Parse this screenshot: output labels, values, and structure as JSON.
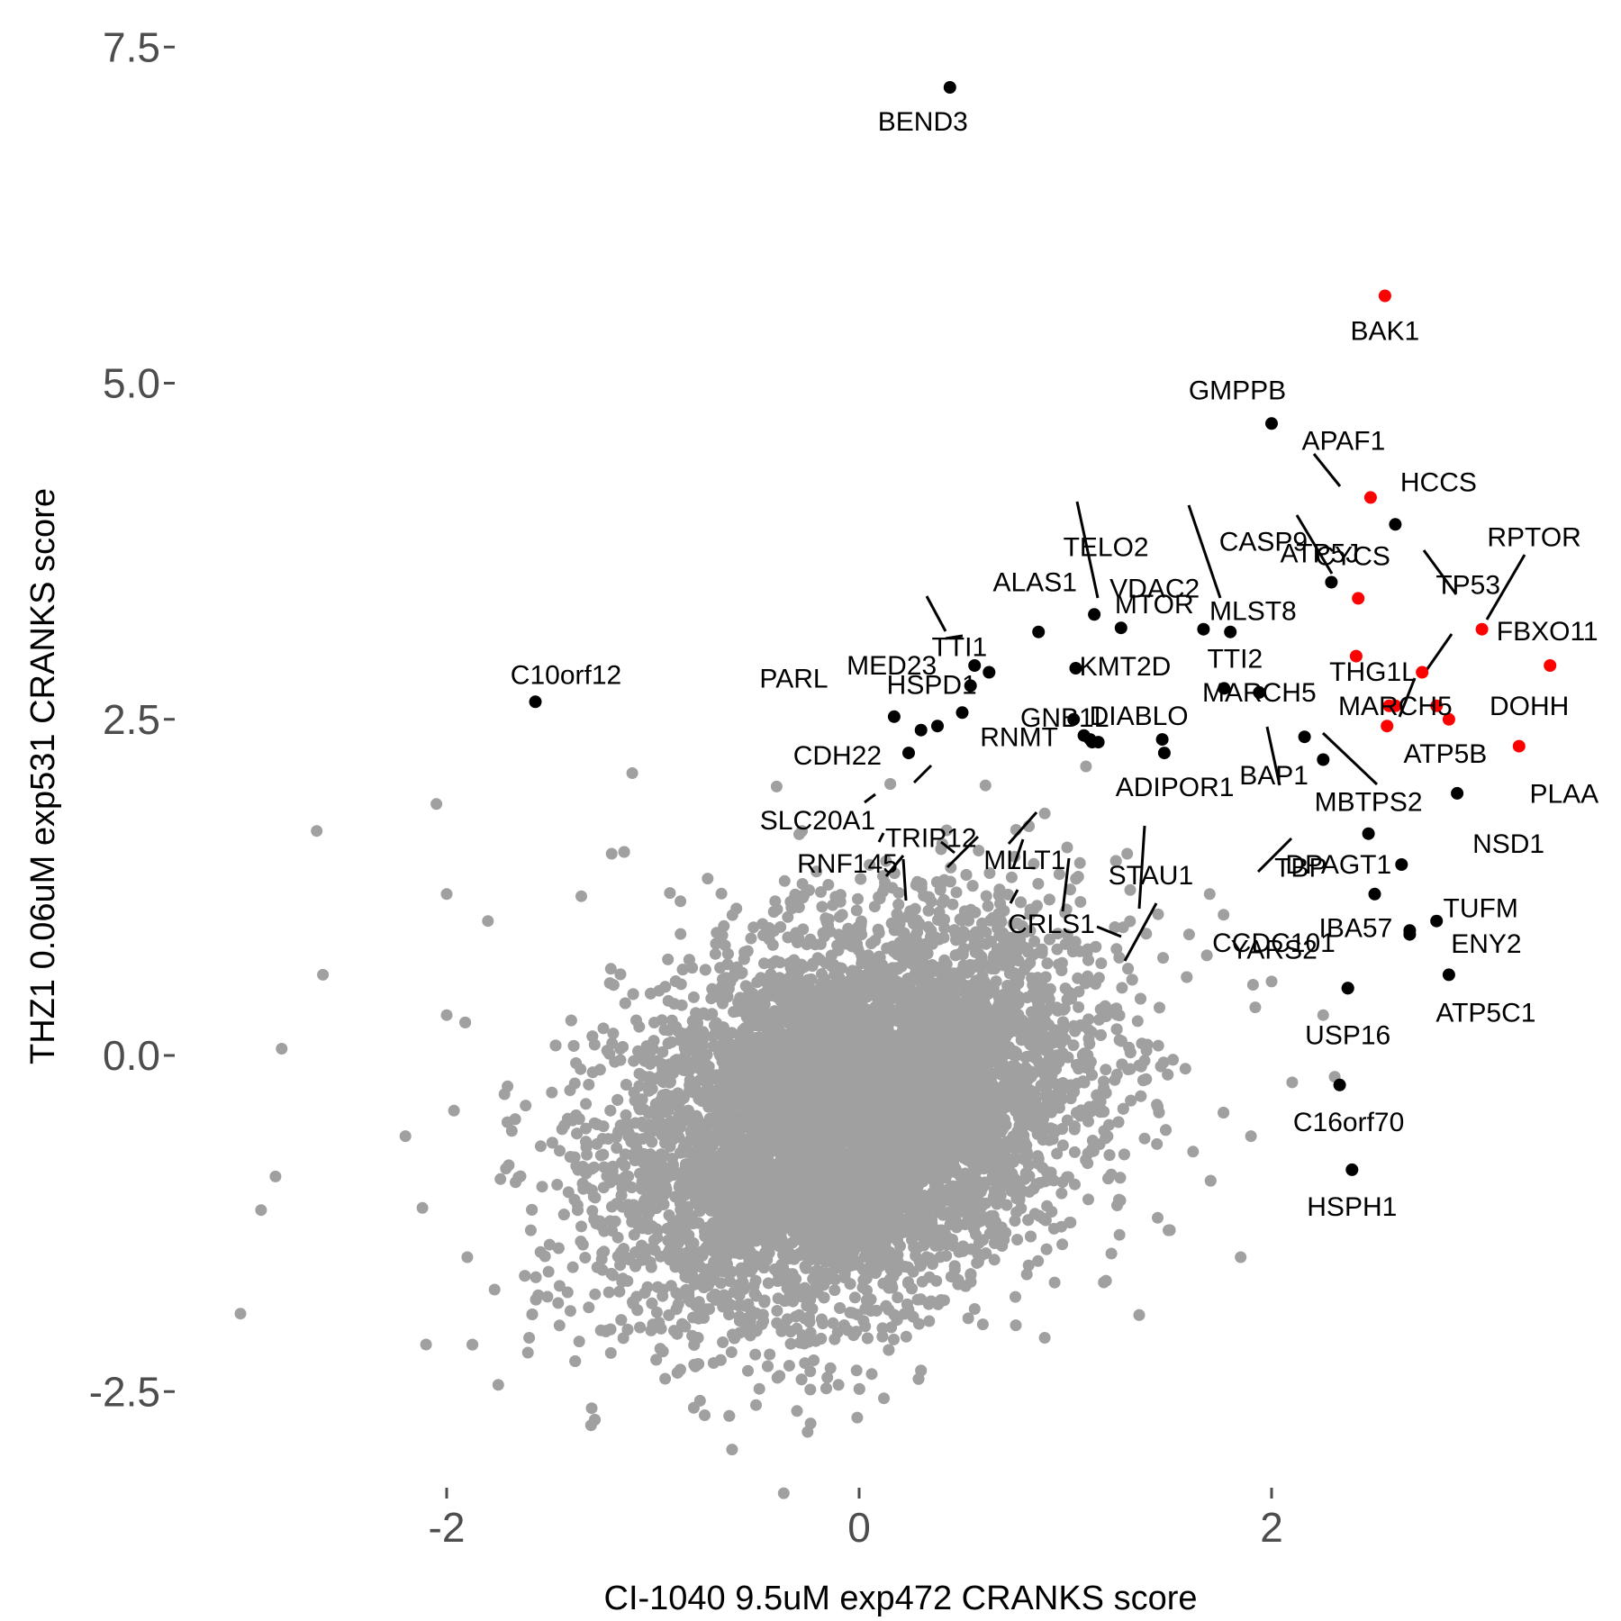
{
  "chart_data": {
    "type": "scatter",
    "xlabel": "CI-1040 9.5uM exp472 CRANKS score",
    "ylabel": "THZ1 0.06uM exp531 CRANKS score",
    "x_ticks": [
      -2,
      0,
      2
    ],
    "y_ticks": [
      -2.5,
      0.0,
      2.5,
      5.0,
      7.5
    ],
    "x_tick_labels": [
      "-2",
      "0",
      "2"
    ],
    "y_tick_labels": [
      "-2.5",
      "0.0",
      "2.5",
      "5.0",
      "7.5"
    ],
    "xlim": [
      -3.05,
      3.6
    ],
    "ylim": [
      -3.27,
      7.75
    ],
    "grid": false,
    "legend": "none",
    "colors": {
      "background": "#ffffff",
      "points": "#a0a0a0",
      "labeled": "#000000",
      "highlight": "#ff0000",
      "ticks": "#4d4d4d"
    },
    "background_distribution": {
      "description_only": false,
      "center": [
        -0.05,
        -0.45
      ],
      "sd": [
        0.55,
        0.7
      ],
      "correlation": 0.3,
      "sparse_outliers": [
        [
          -2.05,
          1.87
        ],
        [
          -2.63,
          1.67
        ],
        [
          -2.0,
          1.2
        ],
        [
          -2.6,
          0.6
        ],
        [
          -2.8,
          0.05
        ],
        [
          -2.83,
          -0.9
        ],
        [
          -2.9,
          -1.15
        ],
        [
          -3.0,
          -1.92
        ],
        [
          -2.1,
          -2.15
        ],
        [
          -1.75,
          -2.45
        ],
        [
          -1.3,
          -2.75
        ],
        [
          -0.5,
          -2.6
        ],
        [
          -0.25,
          -2.8
        ],
        [
          0.12,
          -2.55
        ],
        [
          1.85,
          -1.5
        ],
        [
          1.1,
          2.15
        ],
        [
          -1.1,
          2.1
        ],
        [
          1.45,
          1.05
        ],
        [
          1.6,
          0.9
        ],
        [
          2.0,
          0.55
        ],
        [
          2.25,
          0.3
        ],
        [
          1.9,
          -0.6
        ],
        [
          -1.2,
          1.5
        ],
        [
          0.6,
          -2.0
        ],
        [
          -0.8,
          -2.3
        ],
        [
          -1.6,
          -2.1
        ],
        [
          -1.9,
          -1.5
        ],
        [
          -2.2,
          -0.6
        ],
        [
          -2.0,
          0.3
        ],
        [
          -1.8,
          1.0
        ],
        [
          1.3,
          1.5
        ],
        [
          0.9,
          1.8
        ],
        [
          -0.4,
          2.0
        ],
        [
          1.7,
          1.2
        ],
        [
          2.1,
          -0.2
        ],
        [
          1.5,
          -1.3
        ],
        [
          0.9,
          -2.1
        ],
        [
          -0.1,
          -2.45
        ],
        [
          -1.0,
          -2.0
        ],
        [
          -1.4,
          -1.9
        ]
      ]
    },
    "highlight_points": [
      {
        "label": "BAK1",
        "x": 2.55,
        "y": 5.65
      },
      {
        "label": "APAF1",
        "x": 2.48,
        "y": 4.15
      },
      {
        "label": "CYCS",
        "x": 2.42,
        "y": 3.4
      },
      {
        "label": "CASP9",
        "x": 2.41,
        "y": 2.97
      },
      {
        "label": "RPTOR",
        "x": 3.02,
        "y": 3.17
      },
      {
        "label": "TP53",
        "x": 2.73,
        "y": 2.85
      },
      {
        "label": "FBXO11",
        "x": 3.35,
        "y": 2.9
      },
      {
        "label": "THG1L",
        "x": 2.57,
        "y": 2.6
      },
      {
        "label": "DOHH",
        "x": 2.8,
        "y": 2.6
      },
      {
        "label": "ATP5B",
        "x": 2.86,
        "y": 2.5
      },
      {
        "label": "MARCH5",
        "x": 2.6,
        "y": 2.6
      },
      {
        "label": "PLAA",
        "x": 3.2,
        "y": 2.3
      },
      {
        "label": "",
        "x": 2.56,
        "y": 2.45
      }
    ],
    "labeled_points": [
      {
        "label": "BEND3",
        "x": 0.44,
        "y": 7.2
      },
      {
        "label": "C10orf12",
        "x": -1.57,
        "y": 2.63
      },
      {
        "label": "GMPPB",
        "x": 2.0,
        "y": 4.7
      },
      {
        "label": "HCCS",
        "x": 2.6,
        "y": 3.95
      },
      {
        "label": "ATP5J",
        "x": 2.29,
        "y": 3.52
      },
      {
        "label": "VDAC2",
        "x": 1.8,
        "y": 3.15
      },
      {
        "label": "MLST8",
        "x": 1.67,
        "y": 3.17
      },
      {
        "label": "TELO2",
        "x": 1.14,
        "y": 3.28
      },
      {
        "label": "ALAS1",
        "x": 0.87,
        "y": 3.15
      },
      {
        "label": "MTOR",
        "x": 1.27,
        "y": 3.18
      },
      {
        "label": "KMT2D",
        "x": 1.05,
        "y": 2.88
      },
      {
        "label": "TTI2",
        "x": 1.77,
        "y": 2.73
      },
      {
        "label": "MED23",
        "x": 0.56,
        "y": 2.9
      },
      {
        "label": "TTI1",
        "x": 0.63,
        "y": 2.85
      },
      {
        "label": "HSPD1",
        "x": 0.54,
        "y": 2.75
      },
      {
        "label": "PARL",
        "x": 0.5,
        "y": 2.55
      },
      {
        "label": "CDH22",
        "x": 0.17,
        "y": 2.52
      },
      {
        "label": "SLC20A1",
        "x": 0.38,
        "y": 2.45
      },
      {
        "label": "TRIP12",
        "x": 0.3,
        "y": 2.42
      },
      {
        "label": "RNF145",
        "x": 0.24,
        "y": 2.25
      },
      {
        "label": "GNB1L",
        "x": 1.04,
        "y": 2.5
      },
      {
        "label": "RNMT",
        "x": 1.09,
        "y": 2.38
      },
      {
        "label": "MLLT1",
        "x": 1.13,
        "y": 2.33
      },
      {
        "label": "ADIPOR1",
        "x": 1.16,
        "y": 2.33
      },
      {
        "label": "CRLS1",
        "x": 1.12,
        "y": 2.35
      },
      {
        "label": "DIABLO",
        "x": 1.47,
        "y": 2.35
      },
      {
        "label": "STAU1",
        "x": 1.48,
        "y": 2.25
      },
      {
        "label": "MARCH5",
        "x": 1.94,
        "y": 2.7
      },
      {
        "label": "BAP1",
        "x": 2.16,
        "y": 2.37
      },
      {
        "label": "TBP",
        "x": 2.25,
        "y": 2.2
      },
      {
        "label": "MBTPS2",
        "x": 2.47,
        "y": 1.65
      },
      {
        "label": "NSD1",
        "x": 2.9,
        "y": 1.95
      },
      {
        "label": "DPAGT1",
        "x": 2.63,
        "y": 1.42
      },
      {
        "label": "CCDC101",
        "x": 2.5,
        "y": 1.2
      },
      {
        "label": "TUFM",
        "x": 2.8,
        "y": 1.0
      },
      {
        "label": "IBA57",
        "x": 2.67,
        "y": 0.9
      },
      {
        "label": "ENY2",
        "x": 2.67,
        "y": 0.93
      },
      {
        "label": "YARS2",
        "x": 2.37,
        "y": 0.5
      },
      {
        "label": "ATP5C1",
        "x": 2.86,
        "y": 0.6
      },
      {
        "label": "USP16",
        "x": 2.37,
        "y": 0.5
      },
      {
        "label": "C16orf70",
        "x": 2.33,
        "y": -0.22
      },
      {
        "label": "HSPH1",
        "x": 2.39,
        "y": -0.85
      }
    ]
  }
}
